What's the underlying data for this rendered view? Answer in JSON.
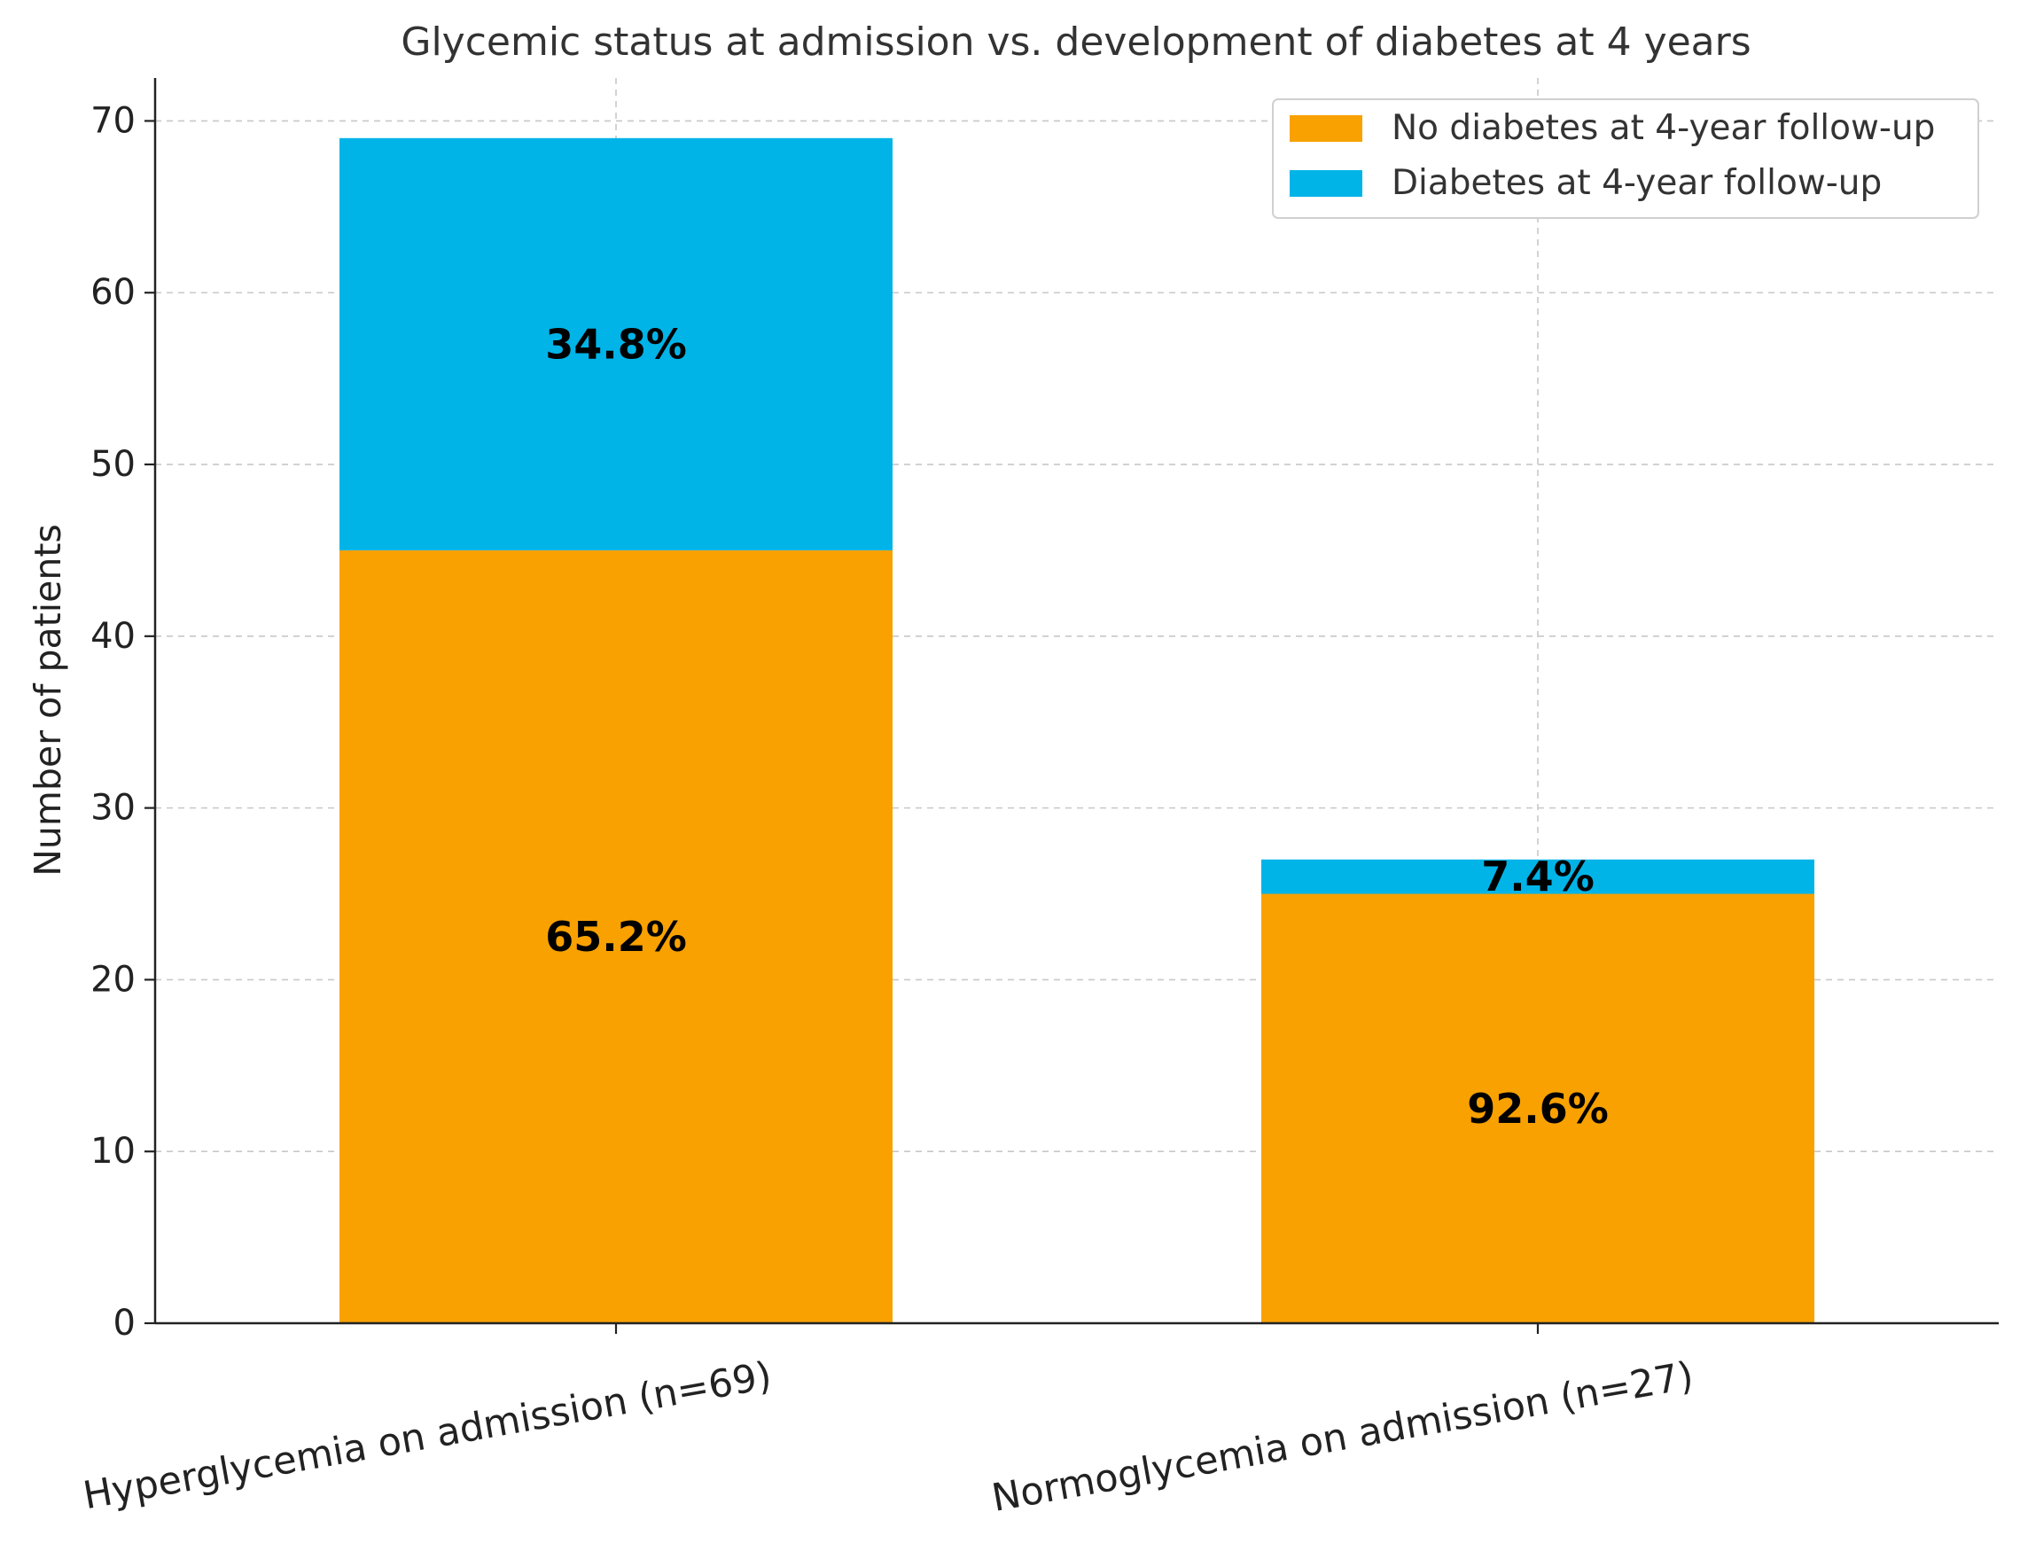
{
  "chart_data": {
    "type": "bar",
    "stacked": true,
    "title": "Glycemic status at admission vs. development of diabetes at 4 years",
    "xlabel": "",
    "ylabel": "Number of patients",
    "ylim": [
      0,
      72.5
    ],
    "yticks": [
      0,
      10,
      20,
      30,
      40,
      50,
      60,
      70
    ],
    "grid": true,
    "legend_position": "top-right",
    "categories": [
      "Hyperglycemia on admission (n=69)",
      "Normoglycemia on admission (n=27)"
    ],
    "series": [
      {
        "name": "No diabetes at 4-year follow-up",
        "color": "#F8A100",
        "values": [
          45,
          25
        ],
        "labels": [
          "65.2%",
          "92.6%"
        ]
      },
      {
        "name": "Diabetes at 4-year follow-up",
        "color": "#00B4E8",
        "values": [
          24,
          2
        ],
        "labels": [
          "34.8%",
          "7.4%"
        ]
      }
    ]
  }
}
